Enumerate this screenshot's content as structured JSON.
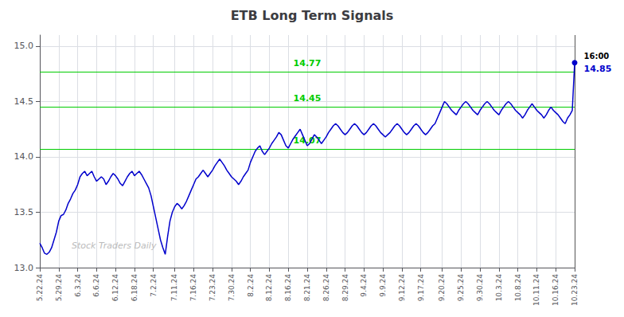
{
  "chart_data": {
    "type": "line",
    "title": "ETB Long Term Signals",
    "categories": [
      "5.22.24",
      null,
      null,
      null,
      null,
      null,
      null,
      null,
      "5.29.24",
      null,
      null,
      null,
      null,
      null,
      null,
      null,
      "6.3.24",
      null,
      null,
      null,
      null,
      null,
      null,
      null,
      "6.6.24",
      null,
      null,
      null,
      null,
      null,
      null,
      null,
      "6.12.24",
      null,
      null,
      null,
      null,
      null,
      null,
      null,
      "6.18.24",
      null,
      null,
      null,
      null,
      null,
      null,
      null,
      "7.2.24",
      null,
      null,
      null,
      null,
      null,
      null,
      null,
      null,
      "7.11.24",
      null,
      null,
      null,
      null,
      null,
      null,
      null,
      "7.16.24",
      null,
      null,
      null,
      null,
      null,
      null,
      null,
      "7.23.24",
      null,
      null,
      null,
      null,
      null,
      null,
      null,
      "7.30.24",
      null,
      null,
      null,
      null,
      null,
      null,
      null,
      "8.2.24",
      null,
      null,
      null,
      null,
      null,
      null,
      null,
      "8.12.24",
      null,
      null,
      null,
      null,
      null,
      null,
      null,
      "8.16.24",
      null,
      null,
      null,
      null,
      null,
      null,
      null,
      "8.21.24",
      null,
      null,
      null,
      null,
      null,
      null,
      null,
      "8.26.24",
      null,
      null,
      null,
      null,
      null,
      null,
      null,
      "8.29.24",
      null,
      null,
      null,
      null,
      null,
      null,
      null,
      "9.4.24",
      null,
      null,
      null,
      null,
      null,
      null,
      null,
      "9.9.24",
      null,
      null,
      null,
      null,
      null,
      null,
      null,
      "9.12.24",
      null,
      null,
      null,
      null,
      null,
      null,
      null,
      "9.17.24",
      null,
      null,
      null,
      null,
      null,
      null,
      null,
      null,
      "9.20.24",
      null,
      null,
      null,
      null,
      null,
      null,
      null,
      "9.25.24",
      null,
      null,
      null,
      null,
      null,
      null,
      null,
      "9.30.24",
      null,
      null,
      null,
      null,
      null,
      null,
      null,
      "10.3.24",
      null,
      null,
      null,
      null,
      null,
      null,
      null,
      "10.8.24",
      null,
      null,
      null,
      null,
      null,
      null,
      null,
      "10.11.24",
      null,
      null,
      null,
      null,
      null,
      null,
      null,
      "10.16.24",
      null,
      null,
      null,
      null,
      null,
      null,
      null,
      "10.23.24"
    ],
    "values": [
      13.22,
      13.18,
      13.13,
      13.12,
      13.14,
      13.18,
      13.25,
      13.32,
      13.42,
      13.47,
      13.48,
      13.52,
      13.58,
      13.62,
      13.67,
      13.7,
      13.75,
      13.82,
      13.85,
      13.87,
      13.83,
      13.85,
      13.87,
      13.82,
      13.78,
      13.8,
      13.82,
      13.8,
      13.75,
      13.78,
      13.82,
      13.85,
      13.83,
      13.8,
      13.76,
      13.74,
      13.78,
      13.82,
      13.85,
      13.87,
      13.83,
      13.85,
      13.87,
      13.84,
      13.8,
      13.76,
      13.72,
      13.65,
      13.55,
      13.45,
      13.35,
      13.25,
      13.18,
      13.12,
      13.28,
      13.42,
      13.5,
      13.55,
      13.58,
      13.56,
      13.53,
      13.56,
      13.6,
      13.65,
      13.7,
      13.75,
      13.8,
      13.82,
      13.85,
      13.88,
      13.85,
      13.82,
      13.85,
      13.88,
      13.92,
      13.95,
      13.98,
      13.95,
      13.92,
      13.88,
      13.85,
      13.82,
      13.8,
      13.78,
      13.75,
      13.78,
      13.82,
      13.85,
      13.88,
      13.95,
      14.0,
      14.05,
      14.08,
      14.1,
      14.05,
      14.02,
      14.05,
      14.08,
      14.12,
      14.15,
      14.18,
      14.22,
      14.2,
      14.15,
      14.1,
      14.08,
      14.12,
      14.16,
      14.19,
      14.22,
      14.25,
      14.2,
      14.15,
      14.1,
      14.12,
      14.16,
      14.2,
      14.18,
      14.15,
      14.12,
      14.15,
      14.18,
      14.22,
      14.25,
      14.28,
      14.3,
      14.28,
      14.25,
      14.22,
      14.2,
      14.22,
      14.25,
      14.28,
      14.3,
      14.28,
      14.25,
      14.22,
      14.2,
      14.22,
      14.25,
      14.28,
      14.3,
      14.28,
      14.25,
      14.22,
      14.2,
      14.18,
      14.2,
      14.22,
      14.25,
      14.28,
      14.3,
      14.28,
      14.25,
      14.22,
      14.2,
      14.22,
      14.25,
      14.28,
      14.3,
      14.28,
      14.25,
      14.22,
      14.2,
      14.22,
      14.25,
      14.28,
      14.3,
      14.35,
      14.4,
      14.45,
      14.5,
      14.48,
      14.45,
      14.42,
      14.4,
      14.38,
      14.42,
      14.45,
      14.48,
      14.5,
      14.48,
      14.45,
      14.42,
      14.4,
      14.38,
      14.42,
      14.45,
      14.48,
      14.5,
      14.48,
      14.45,
      14.42,
      14.4,
      14.38,
      14.42,
      14.45,
      14.48,
      14.5,
      14.48,
      14.45,
      14.42,
      14.4,
      14.38,
      14.35,
      14.38,
      14.42,
      14.45,
      14.48,
      14.45,
      14.42,
      14.4,
      14.38,
      14.35,
      14.38,
      14.42,
      14.45,
      14.42,
      14.4,
      14.38,
      14.35,
      14.32,
      14.3,
      14.35,
      14.38,
      14.42,
      14.85
    ],
    "color": "#0000cc",
    "ylim": [
      13.0,
      15.1
    ],
    "yticks": [
      {
        "value": 13,
        "label": "13.0"
      },
      13.5,
      {
        "value": 14,
        "label": "14.0"
      },
      14.5,
      {
        "value": 15,
        "label": "15.0"
      }
    ],
    "grid": true,
    "hlines": [
      {
        "value": 14.77,
        "label": "14.77",
        "color": "#00cc00"
      },
      {
        "value": 14.45,
        "label": "14.45",
        "color": "#00cc00"
      },
      {
        "value": 14.07,
        "label": "14.07",
        "color": "#00cc00"
      }
    ],
    "last_label": "16:00",
    "last_value": 14.85,
    "watermark": "Stock Traders Daily"
  }
}
